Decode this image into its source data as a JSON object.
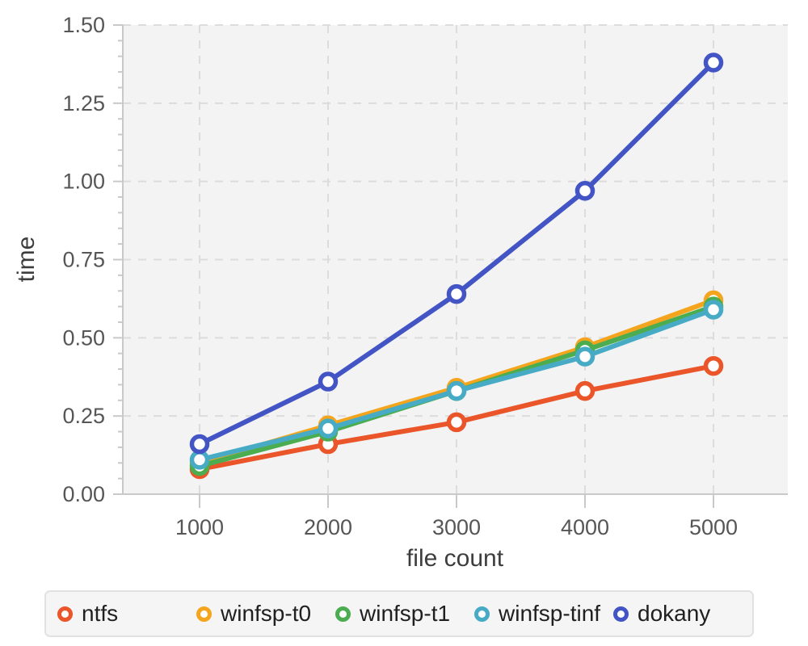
{
  "chart_data": {
    "type": "line",
    "title": "",
    "xlabel": "file count",
    "ylabel": "time",
    "x": [
      1000,
      2000,
      3000,
      4000,
      5000
    ],
    "x_tick_labels": [
      "1000",
      "2000",
      "3000",
      "4000",
      "5000"
    ],
    "xlim": [
      1000,
      5000
    ],
    "ylim": [
      0,
      1.5
    ],
    "y_ticks": [
      0,
      0.25,
      0.5,
      0.75,
      1.0,
      1.25,
      1.5
    ],
    "y_tick_labels": [
      "0.00",
      "0.25",
      "0.50",
      "0.75",
      "1.00",
      "1.25",
      "1.50"
    ],
    "y_minor_tick_step": 0.05,
    "grid": true,
    "grid_style": "dashed",
    "legend_position": "bottom",
    "series": [
      {
        "name": "ntfs",
        "color": "#ea5529",
        "values": [
          0.08,
          0.16,
          0.23,
          0.33,
          0.41
        ]
      },
      {
        "name": "winfsp-t0",
        "color": "#f5a51d",
        "values": [
          0.1,
          0.22,
          0.34,
          0.47,
          0.62
        ]
      },
      {
        "name": "winfsp-t1",
        "color": "#4bad4f",
        "values": [
          0.09,
          0.2,
          0.33,
          0.46,
          0.6
        ]
      },
      {
        "name": "winfsp-tinf",
        "color": "#47abc6",
        "values": [
          0.11,
          0.21,
          0.33,
          0.44,
          0.59
        ]
      },
      {
        "name": "dokany",
        "color": "#4355c4",
        "values": [
          0.16,
          0.36,
          0.64,
          0.97,
          1.38
        ]
      }
    ],
    "colors": {
      "panel_background": "#f3f3f3",
      "gridline": "#dcdcdc",
      "axis_line": "#c9c9c9",
      "tick_label": "#565656",
      "axis_title": "#3d3d3d",
      "legend_background": "#f5f5f5",
      "legend_border": "#e1e1e1",
      "legend_text": "#202020"
    }
  }
}
